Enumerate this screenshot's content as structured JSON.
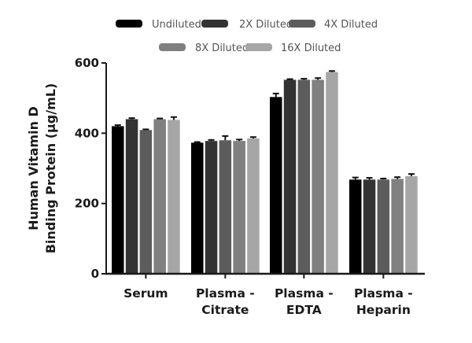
{
  "chart_data": {
    "type": "bar",
    "title": "",
    "xlabel": "",
    "ylabel": "Human Vitamin D Binding Protein (µg/mL)",
    "ylabel_lines": [
      "Human Vitamin D",
      "Binding Protein (µg/mL)"
    ],
    "ylim": [
      0,
      600
    ],
    "yticks": [
      0,
      200,
      400,
      600
    ],
    "grid": false,
    "legend_position": "top",
    "categories": [
      "Serum",
      "Plasma - Citrate",
      "Plasma - EDTA",
      "Plasma - Heparin"
    ],
    "category_lines": [
      [
        "Serum"
      ],
      [
        "Plasma -",
        "Citrate"
      ],
      [
        "Plasma -",
        "EDTA"
      ],
      [
        "Plasma -",
        "Heparin"
      ]
    ],
    "series": [
      {
        "name": "Undiluted",
        "color": "#000000",
        "values": [
          420,
          373,
          503,
          268
        ],
        "errors": [
          3,
          2,
          10,
          6
        ]
      },
      {
        "name": "2X Diluted",
        "color": "#333333",
        "values": [
          440,
          378,
          552,
          268
        ],
        "errors": [
          3,
          3,
          2,
          5
        ]
      },
      {
        "name": "4X Diluted",
        "color": "#5c5c5c",
        "values": [
          409,
          380,
          552,
          268
        ],
        "errors": [
          2,
          12,
          3,
          3
        ]
      },
      {
        "name": "8X Diluted",
        "color": "#808080",
        "values": [
          440,
          378,
          552,
          270
        ],
        "errors": [
          2,
          4,
          5,
          5
        ]
      },
      {
        "name": "16X Diluted",
        "color": "#a6a6a6",
        "values": [
          438,
          385,
          574,
          278
        ],
        "errors": [
          8,
          4,
          3,
          6
        ]
      }
    ]
  }
}
